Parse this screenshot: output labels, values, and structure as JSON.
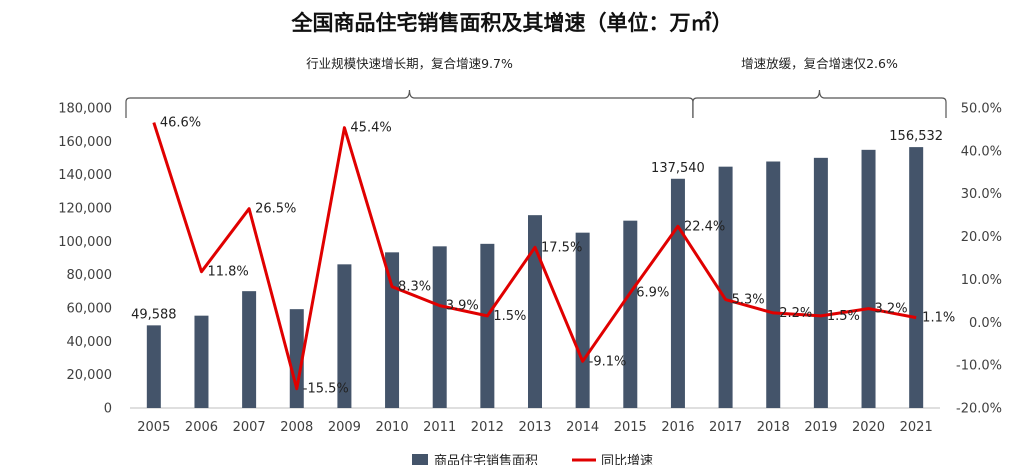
{
  "chart_data": {
    "type": "bar",
    "title": "全国商品住宅销售面积及其增速（单位：万㎡）",
    "categories": [
      "2005",
      "2006",
      "2007",
      "2008",
      "2009",
      "2010",
      "2011",
      "2012",
      "2013",
      "2014",
      "2015",
      "2016",
      "2017",
      "2018",
      "2019",
      "2020",
      "2021"
    ],
    "series": [
      {
        "name": "商品住宅销售面积",
        "kind": "bar",
        "axis": "left",
        "color": "#44546a",
        "values": [
          49588,
          55400,
          70100,
          59300,
          86200,
          93400,
          97000,
          98500,
          115700,
          105200,
          112400,
          137540,
          144800,
          147900,
          150100,
          154900,
          156532
        ],
        "data_labels": {
          "0": "49,588",
          "11": "137,540",
          "16": "156,532"
        }
      },
      {
        "name": "同比增速",
        "kind": "line",
        "axis": "right",
        "color": "#e00000",
        "values": [
          46.6,
          11.8,
          26.5,
          -15.5,
          45.4,
          8.3,
          3.9,
          1.5,
          17.5,
          -9.1,
          6.9,
          22.4,
          5.3,
          2.2,
          1.5,
          3.2,
          1.1
        ],
        "data_labels": [
          "46.6%",
          "11.8%",
          "26.5%",
          "-15.5%",
          "45.4%",
          "8.3%",
          "3.9%",
          "1.5%",
          "17.5%",
          "-9.1%",
          "6.9%",
          "22.4%",
          "5.3%",
          "2.2%",
          "1.5%",
          "3.2%",
          "1.1%"
        ]
      }
    ],
    "y_left": {
      "range": [
        0,
        180000
      ],
      "ticks": [
        "0",
        "20,000",
        "40,000",
        "60,000",
        "80,000",
        "100,000",
        "120,000",
        "140,000",
        "160,000",
        "180,000"
      ]
    },
    "y_right": {
      "range": [
        -20,
        50
      ],
      "ticks": [
        "-20.0%",
        "-10.0%",
        "0.0%",
        "10.0%",
        "20.0%",
        "30.0%",
        "40.0%",
        "50.0%"
      ]
    },
    "annotations": [
      {
        "text": "行业规模快速增长期，复合增速9.7%",
        "from": "2005",
        "to": "2016"
      },
      {
        "text": "增速放缓，复合增速仅2.6%",
        "from": "2016",
        "to": "2021"
      }
    ],
    "legend": {
      "placement": "bottom",
      "items": [
        "商品住宅销售面积",
        "同比增速"
      ]
    },
    "grid": false
  }
}
